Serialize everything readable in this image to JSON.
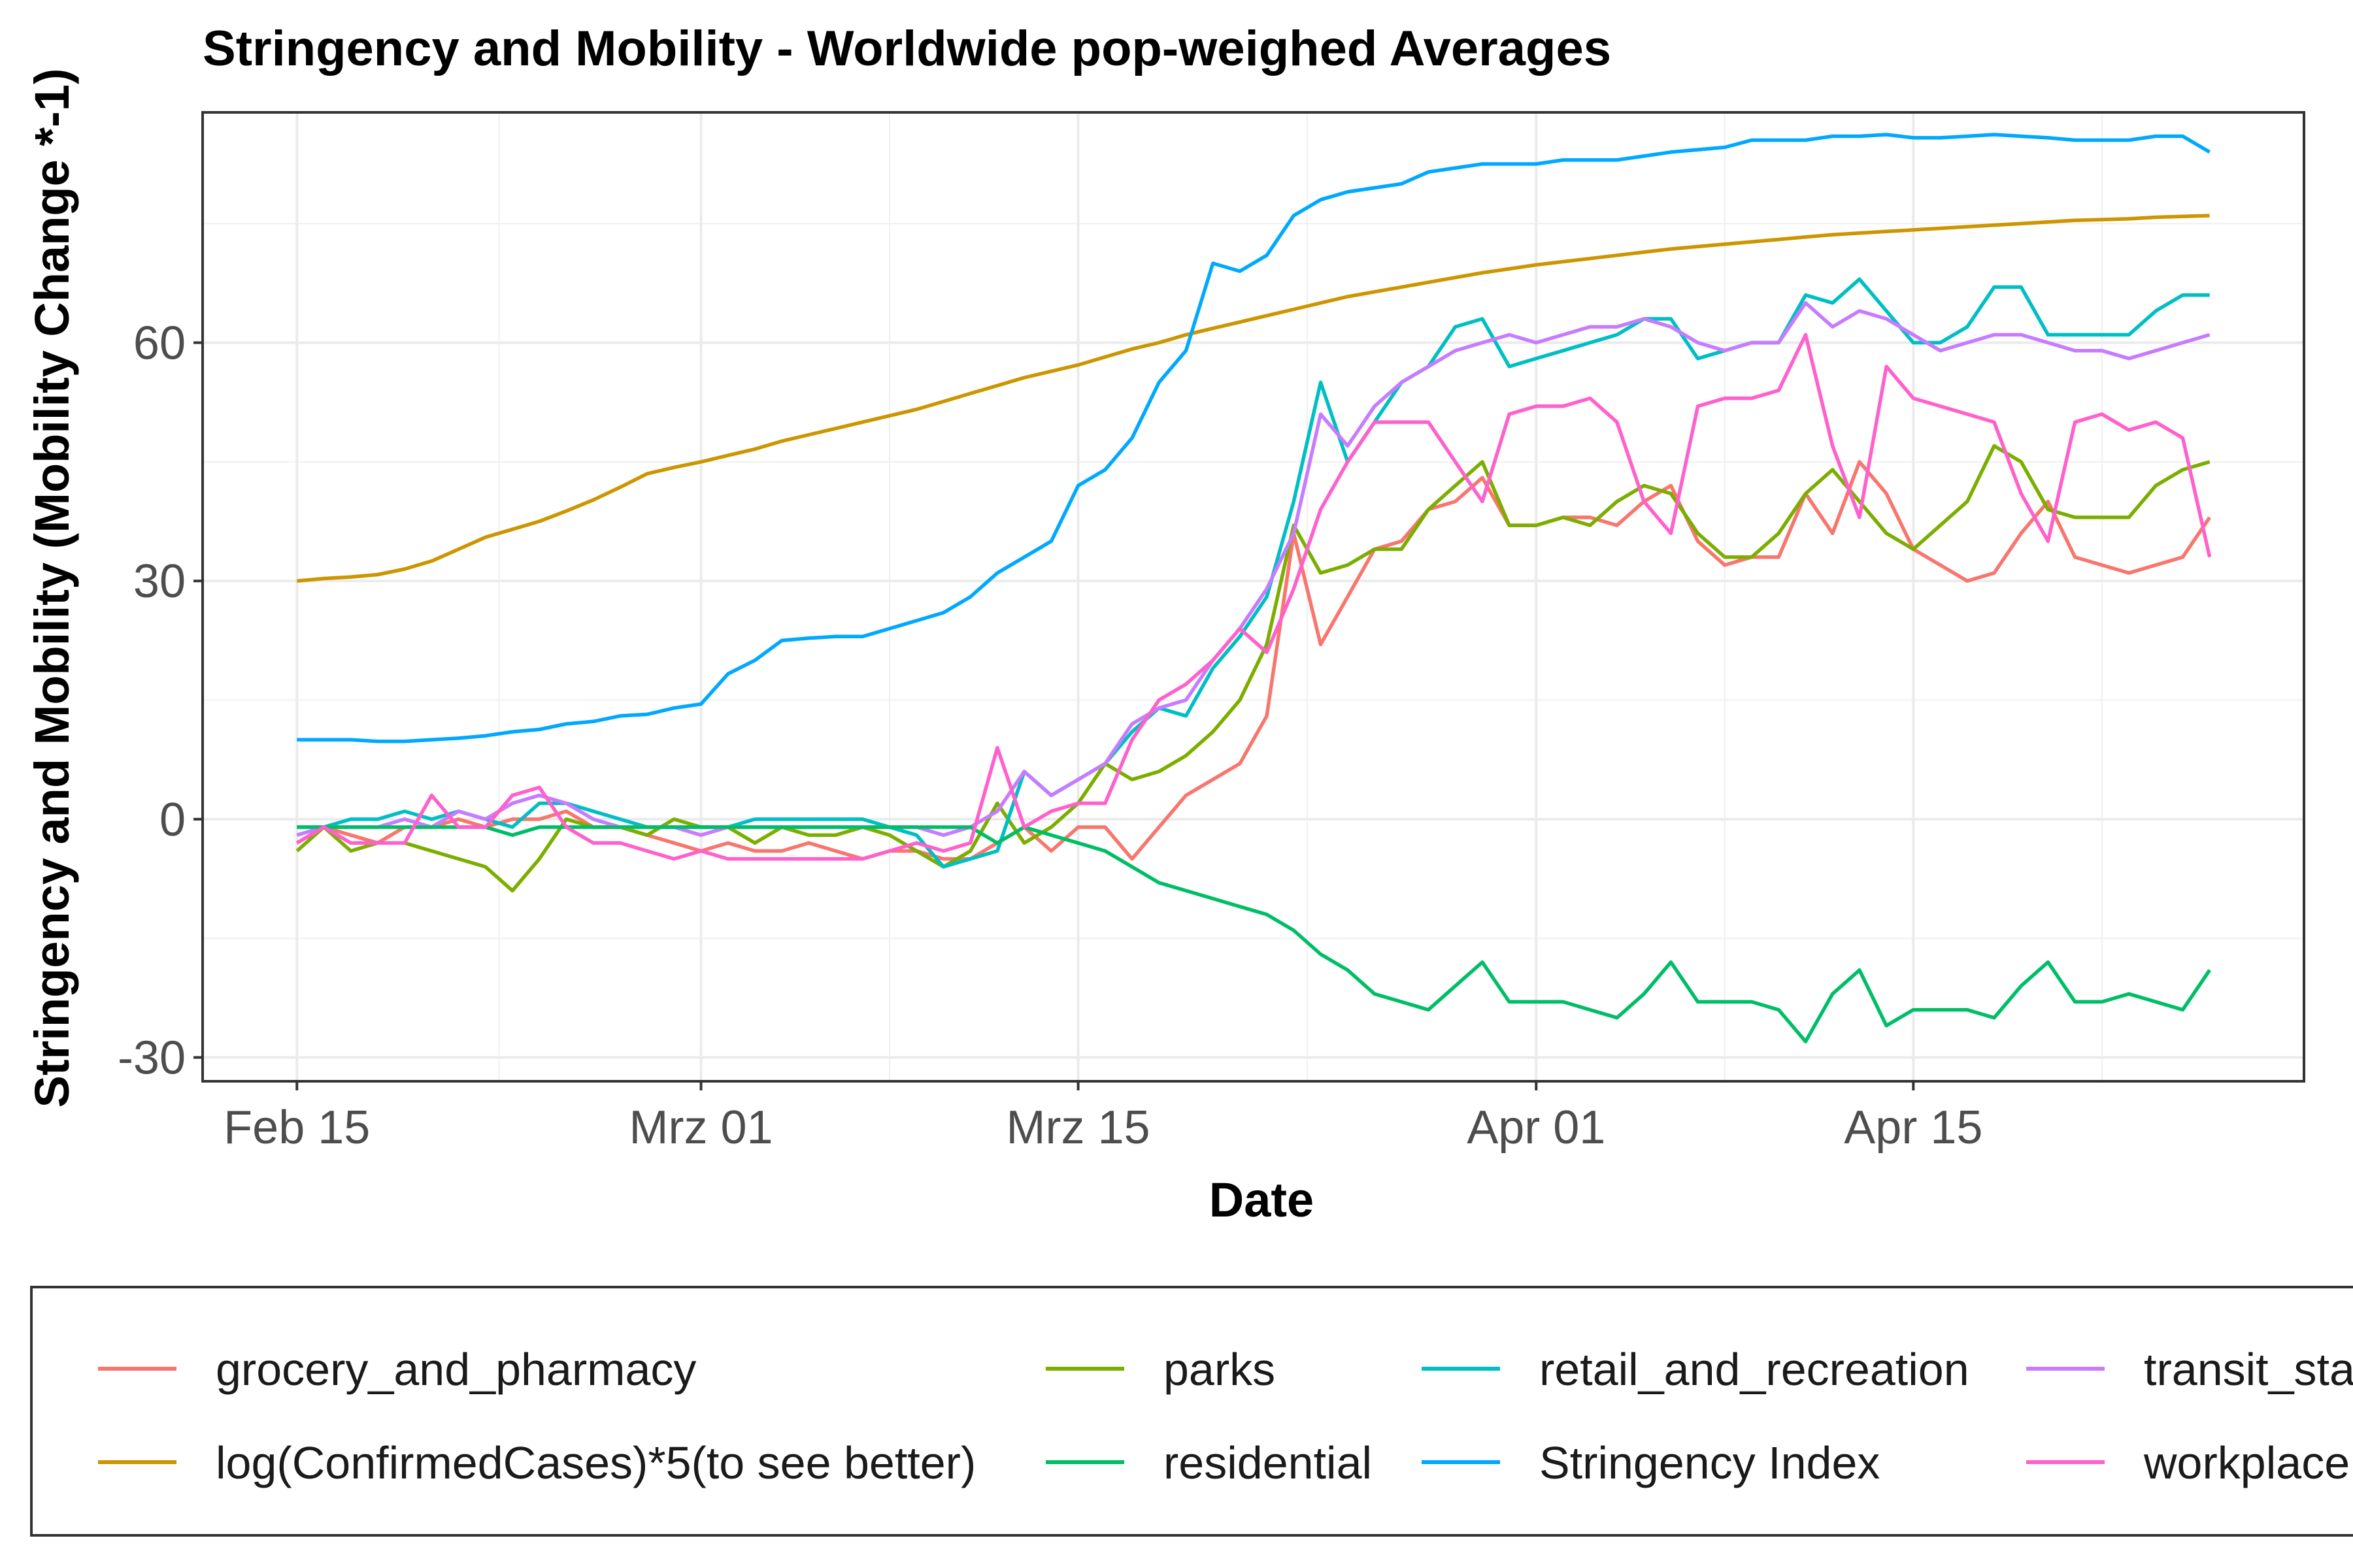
{
  "chart_data": {
    "type": "line",
    "title": "Stringency and Mobility - Worldwide pop-weighed Averages",
    "xlabel": "Date",
    "ylabel": "Stringency and Mobility (Mobility Change *-1)",
    "x_ticks": [
      {
        "day": 0,
        "label": "Feb 15"
      },
      {
        "day": 15,
        "label": "Mrz 01"
      },
      {
        "day": 29,
        "label": "Mrz 15"
      },
      {
        "day": 46,
        "label": "Apr 01"
      },
      {
        "day": 60,
        "label": "Apr 15"
      }
    ],
    "y_ticks": [
      -30,
      0,
      30,
      60
    ],
    "xlim": [
      -3.5,
      74.5
    ],
    "ylim": [
      -33,
      89
    ],
    "grid": true,
    "legend_position": "bottom",
    "x_start_date": "2020-02-15",
    "x": [
      0,
      1,
      2,
      3,
      4,
      5,
      6,
      7,
      8,
      9,
      10,
      11,
      12,
      13,
      14,
      15,
      16,
      17,
      18,
      19,
      20,
      21,
      22,
      23,
      24,
      25,
      26,
      27,
      28,
      29,
      30,
      31,
      32,
      33,
      34,
      35,
      36,
      37,
      38,
      39,
      40,
      41,
      42,
      43,
      44,
      45,
      46,
      47,
      48,
      49,
      50,
      51,
      52,
      53,
      54,
      55,
      56,
      57,
      58,
      59,
      60,
      61,
      62,
      63,
      64,
      65,
      66,
      67,
      68,
      69,
      70,
      71
    ],
    "series": [
      {
        "name": "grocery_and_pharmacy",
        "color": "#F8766D",
        "values": [
          -3,
          -1,
          -2,
          -3,
          -1,
          -1,
          0,
          -1,
          0,
          0,
          1,
          -1,
          -1,
          -2,
          -3,
          -4,
          -3,
          -4,
          -4,
          -3,
          -4,
          -5,
          -4,
          -4,
          -5,
          -5,
          -3,
          -1,
          -4,
          -1,
          -1,
          -5,
          -1,
          3,
          5,
          7,
          13,
          36,
          22,
          28,
          34,
          35,
          39,
          40,
          43,
          37,
          37,
          38,
          38,
          37,
          40,
          42,
          35,
          32,
          33,
          33,
          41,
          36,
          45,
          41,
          34,
          32,
          30,
          31,
          36,
          40,
          33,
          32,
          31,
          32,
          33,
          38
        ]
      },
      {
        "name": "parks",
        "color": "#7CAE00",
        "values": [
          -4,
          -1,
          -4,
          -3,
          -3,
          -4,
          -5,
          -6,
          -9,
          -5,
          0,
          -1,
          -1,
          -2,
          0,
          -1,
          -1,
          -3,
          -1,
          -2,
          -2,
          -1,
          -2,
          -4,
          -6,
          -4,
          2,
          -3,
          -1,
          2,
          7,
          5,
          6,
          8,
          11,
          15,
          22,
          37,
          31,
          32,
          34,
          34,
          39,
          42,
          45,
          37,
          37,
          38,
          37,
          40,
          42,
          41,
          36,
          33,
          33,
          36,
          41,
          44,
          40,
          36,
          34,
          37,
          40,
          47,
          45,
          39,
          38,
          38,
          38,
          42,
          44,
          45
        ]
      },
      {
        "name": "retail_and_recreation",
        "color": "#00BFC4",
        "values": [
          -1,
          -1,
          0,
          0,
          1,
          0,
          1,
          0,
          -1,
          2,
          2,
          1,
          0,
          -1,
          -1,
          -1,
          -1,
          0,
          0,
          0,
          0,
          0,
          -1,
          -2,
          -6,
          -5,
          -4,
          6,
          3,
          5,
          7,
          11,
          14,
          13,
          19,
          23,
          28,
          40,
          55,
          45,
          50,
          55,
          57,
          62,
          63,
          57,
          58,
          59,
          60,
          61,
          63,
          63,
          58,
          59,
          60,
          60,
          66,
          65,
          68,
          64,
          60,
          60,
          62,
          67,
          67,
          61,
          61,
          61,
          61,
          64,
          66,
          66
        ]
      },
      {
        "name": "transit_stations",
        "color": "#C77CFF",
        "values": [
          -2,
          -1,
          -1,
          -1,
          0,
          -1,
          1,
          0,
          2,
          3,
          2,
          0,
          -1,
          -1,
          -1,
          -2,
          -1,
          -1,
          -1,
          -1,
          -1,
          -1,
          -1,
          -1,
          -2,
          -1,
          1,
          6,
          3,
          5,
          7,
          12,
          14,
          15,
          20,
          24,
          29,
          36,
          51,
          47,
          52,
          55,
          57,
          59,
          60,
          61,
          60,
          61,
          62,
          62,
          63,
          62,
          60,
          59,
          60,
          60,
          65,
          62,
          64,
          63,
          61,
          59,
          60,
          61,
          61,
          60,
          59,
          59,
          58,
          59,
          60,
          61
        ]
      },
      {
        "name": "log(ConfirmedCases)*5(to see better)",
        "color": "#CD9600",
        "values": [
          30,
          30.3,
          30.5,
          30.8,
          31.5,
          32.5,
          34,
          35.5,
          36.5,
          37.5,
          38.8,
          40.2,
          41.8,
          43.5,
          44.3,
          45,
          45.8,
          46.6,
          47.6,
          48.4,
          49.2,
          50,
          50.8,
          51.6,
          52.6,
          53.6,
          54.6,
          55.6,
          56.4,
          57.2,
          58.2,
          59.2,
          60,
          61,
          61.8,
          62.6,
          63.4,
          64.2,
          65,
          65.8,
          66.4,
          67,
          67.6,
          68.2,
          68.8,
          69.3,
          69.8,
          70.2,
          70.6,
          71,
          71.4,
          71.8,
          72.1,
          72.4,
          72.7,
          73,
          73.3,
          73.6,
          73.8,
          74,
          74.2,
          74.4,
          74.6,
          74.8,
          75,
          75.2,
          75.4,
          75.5,
          75.6,
          75.8,
          75.9,
          76
        ]
      },
      {
        "name": "residential",
        "color": "#00BE67",
        "values": [
          -1,
          -1,
          -1,
          -1,
          -1,
          -1,
          -1,
          -1,
          -2,
          -1,
          -1,
          -1,
          -1,
          -1,
          -1,
          -1,
          -1,
          -1,
          -1,
          -1,
          -1,
          -1,
          -1,
          -1,
          -1,
          -1,
          -3,
          -1,
          -2,
          -3,
          -4,
          -6,
          -8,
          -9,
          -10,
          -11,
          -12,
          -14,
          -17,
          -19,
          -22,
          -23,
          -24,
          -21,
          -18,
          -23,
          -23,
          -23,
          -24,
          -25,
          -22,
          -18,
          -23,
          -23,
          -23,
          -24,
          -28,
          -22,
          -19,
          -26,
          -24,
          -24,
          -24,
          -25,
          -21,
          -18,
          -23,
          -23,
          -22,
          -23,
          -24,
          -19
        ]
      },
      {
        "name": "Stringency Index",
        "color": "#00A9FF",
        "values": [
          10,
          10,
          10,
          9.8,
          9.8,
          10,
          10.2,
          10.5,
          11,
          11.3,
          12,
          12.3,
          13,
          13.2,
          14,
          14.5,
          18.3,
          20,
          22.5,
          22.8,
          23,
          23,
          24,
          25,
          26,
          28,
          31,
          33,
          35,
          42,
          44,
          48,
          55,
          59,
          70,
          69,
          71,
          76,
          78,
          79,
          79.5,
          80,
          81.5,
          82,
          82.5,
          82.5,
          82.5,
          83,
          83,
          83,
          83.5,
          84,
          84.3,
          84.6,
          85.5,
          85.5,
          85.5,
          86,
          86,
          86.2,
          85.8,
          85.8,
          86,
          86.2,
          86,
          85.8,
          85.5,
          85.5,
          85.5,
          86,
          86,
          84
        ]
      },
      {
        "name": "workplaces",
        "color": "#FF61CC",
        "values": [
          -3,
          -1,
          -3,
          -3,
          -3,
          3,
          -1,
          -1,
          3,
          4,
          -1,
          -3,
          -3,
          -4,
          -5,
          -4,
          -5,
          -5,
          -5,
          -5,
          -5,
          -5,
          -4,
          -3,
          -4,
          -3,
          9,
          -1,
          1,
          2,
          2,
          10,
          15,
          17,
          20,
          24,
          21,
          29,
          39,
          45,
          50,
          50,
          50,
          45,
          40,
          51,
          52,
          52,
          53,
          50,
          40,
          36,
          52,
          53,
          53,
          54,
          61,
          47,
          38,
          57,
          53,
          52,
          51,
          50,
          41,
          35,
          50,
          51,
          49,
          50,
          48,
          33
        ]
      }
    ],
    "legend_rows": [
      [
        "grocery_and_pharmacy",
        "parks",
        "retail_and_recreation",
        "transit_sta"
      ],
      [
        "log(ConfirmedCases)*5(to see better)",
        "residential",
        "Stringency Index",
        "workplace"
      ]
    ]
  }
}
